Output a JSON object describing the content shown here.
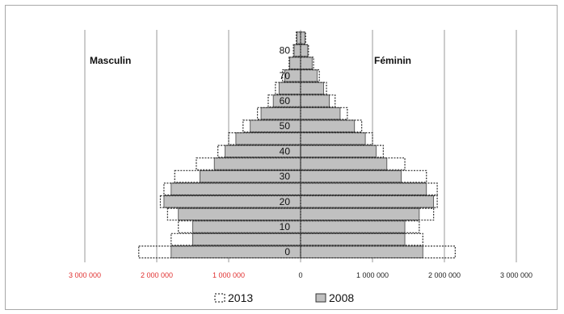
{
  "chart_data": {
    "type": "bar",
    "orientation": "horizontal",
    "subtype": "population-pyramid",
    "age_group_starts": [
      0,
      5,
      10,
      15,
      20,
      25,
      30,
      35,
      40,
      45,
      50,
      55,
      60,
      65,
      70,
      75,
      80,
      85
    ],
    "age_tick_labels": [
      "0",
      "10",
      "20",
      "30",
      "40",
      "50",
      "60",
      "70",
      "80"
    ],
    "side_labels": {
      "left": "Masculin",
      "right": "Féminin"
    },
    "xlim": [
      -3000000,
      3000000
    ],
    "x_ticks": [
      -3000000,
      -2000000,
      -1000000,
      0,
      1000000,
      2000000,
      3000000
    ],
    "x_tick_labels": [
      "3 000 000",
      "2 000 000",
      "1 000 000",
      "0",
      "1 000 000",
      "2 000 000",
      "3 000 000"
    ],
    "x_tick_colors": [
      "#e03030",
      "#e03030",
      "#e03030",
      "#222222",
      "#222222",
      "#222222",
      "#222222"
    ],
    "grid": "vertical",
    "legend_position": "bottom",
    "series": [
      {
        "name": "2013",
        "style": "dotted-outline",
        "color": "#333333",
        "male": [
          2250000,
          1800000,
          1700000,
          1850000,
          1950000,
          1900000,
          1750000,
          1450000,
          1150000,
          1000000,
          800000,
          600000,
          450000,
          350000,
          250000,
          160000,
          100000,
          60000
        ],
        "female": [
          2150000,
          1700000,
          1650000,
          1850000,
          1900000,
          1900000,
          1750000,
          1450000,
          1150000,
          1000000,
          850000,
          650000,
          480000,
          360000,
          260000,
          180000,
          110000,
          70000
        ]
      },
      {
        "name": "2008",
        "style": "filled",
        "color": "#c0c0c0",
        "male": [
          1800000,
          1500000,
          1500000,
          1700000,
          1900000,
          1800000,
          1400000,
          1200000,
          1050000,
          900000,
          700000,
          550000,
          380000,
          300000,
          220000,
          150000,
          90000,
          50000
        ],
        "female": [
          1700000,
          1450000,
          1450000,
          1650000,
          1850000,
          1750000,
          1400000,
          1200000,
          1050000,
          900000,
          750000,
          550000,
          400000,
          320000,
          230000,
          160000,
          100000,
          60000
        ]
      }
    ]
  }
}
